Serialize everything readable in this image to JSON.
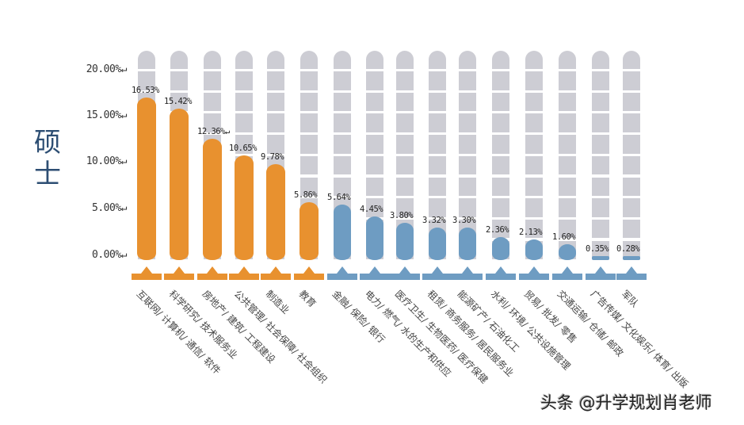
{
  "side_title": [
    "硕",
    "士"
  ],
  "watermark": "头条 @升学规划肖老师",
  "colors": {
    "primary": "#e8912f",
    "secondary": "#6e9cc2",
    "track": "#cdcdd4",
    "title": "#2d4e73"
  },
  "y_axis": {
    "ticks": [
      {
        "label": "20.00%↵",
        "value": 20
      },
      {
        "label": "15.00%↵",
        "value": 15
      },
      {
        "label": "10.00%↵",
        "value": 10
      },
      {
        "label": "5.00%↵",
        "value": 5
      },
      {
        "label": "0.00%↵",
        "value": 0
      }
    ]
  },
  "chart_data": {
    "type": "bar",
    "title": "硕士",
    "xlabel": "",
    "ylabel": "",
    "ylim": [
      0,
      20
    ],
    "grid": false,
    "categories": [
      "互联网/ 计算机/ 通信/ 软件",
      "科学研究/ 技术服务业",
      "房地产/ 建筑/ 工程建设",
      "公共管理/ 社会保障/ 社会组织",
      "制造业",
      "教育",
      "金融/ 保险/ 银行",
      "电力/ 燃气/ 水的生产和供应",
      "医疗卫生/ 生物医药/ 医疗保健",
      "租赁/ 商务服务/ 居民服务业",
      "能源矿产/ 石油化工",
      "水利/ 环境/ 公共设施管理",
      "贸易/ 批发/ 零售",
      "交通运输/ 仓储/ 邮政",
      "广告传媒/ 文化娱乐/ 体育/ 出版",
      "军队"
    ],
    "values": [
      16.53,
      15.42,
      12.36,
      10.65,
      9.78,
      5.86,
      5.64,
      4.45,
      3.8,
      3.32,
      3.3,
      2.36,
      2.13,
      1.6,
      0.35,
      0.28
    ],
    "value_labels": [
      "16.53%",
      "15.42%",
      "12.36%↵",
      "10.65%",
      "9.78%",
      "5.86%",
      "5.64%",
      "4.45%",
      "3.80%",
      "3.32%",
      "3.30%",
      "2.36%",
      "2.13%",
      "1.60%",
      "0.35%",
      "0.28%"
    ],
    "bar_colors": [
      "primary",
      "primary",
      "primary",
      "primary",
      "primary",
      "primary",
      "secondary",
      "secondary",
      "secondary",
      "secondary",
      "secondary",
      "secondary",
      "secondary",
      "secondary",
      "secondary",
      "secondary"
    ],
    "top_n_highlighted": 6
  }
}
